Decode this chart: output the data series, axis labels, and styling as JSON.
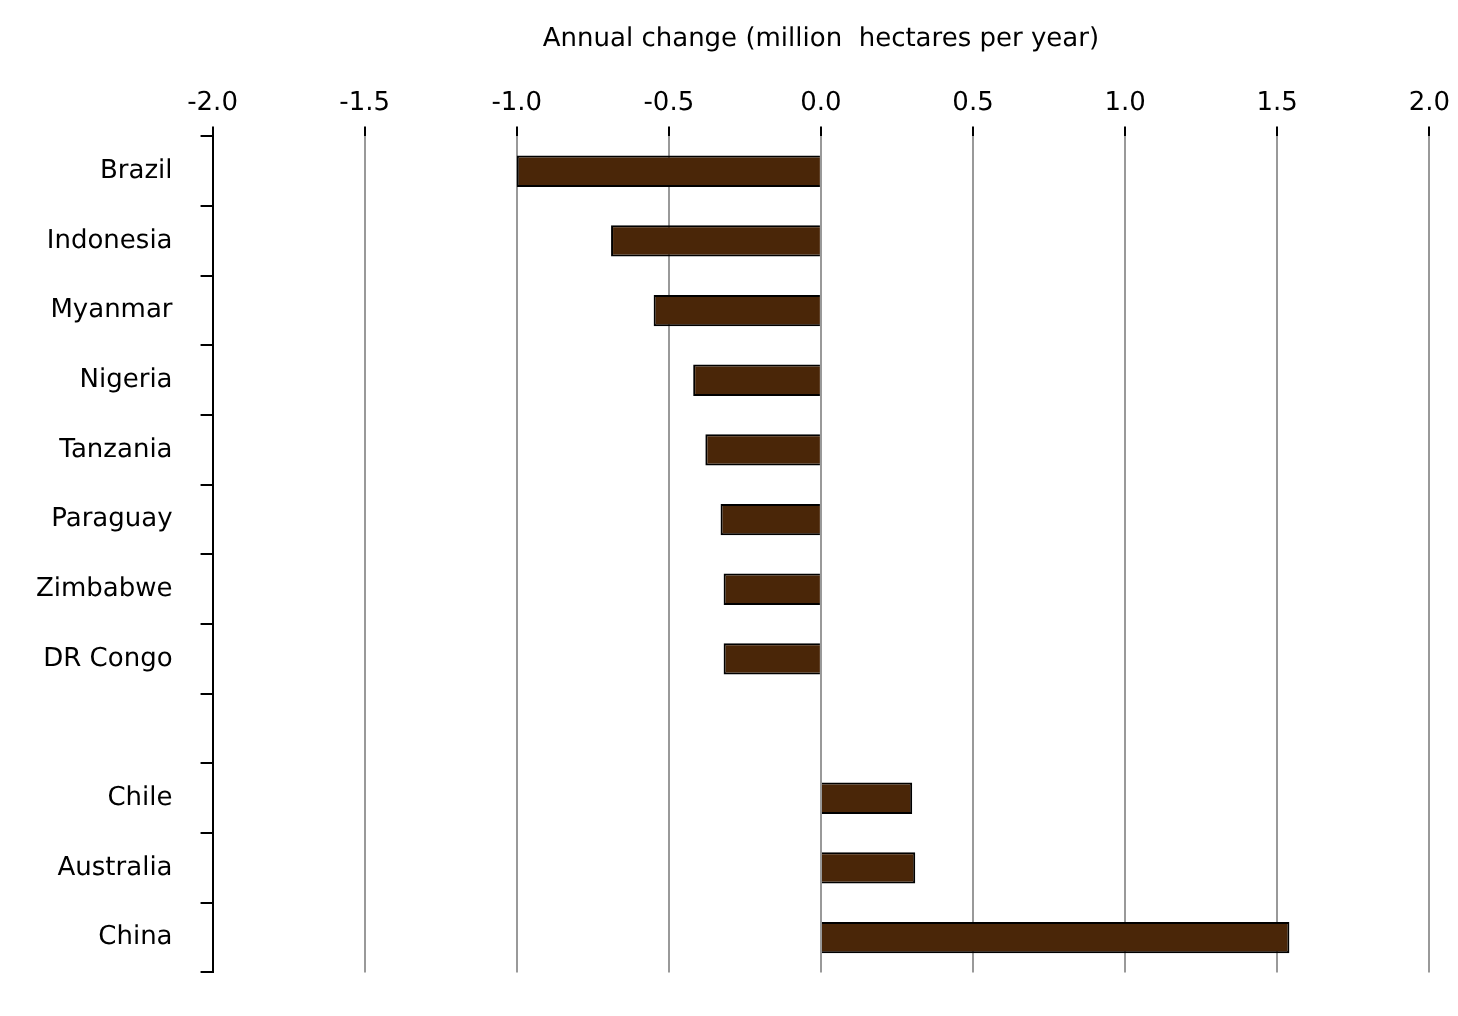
{
  "chart_data": {
    "type": "bar",
    "orientation": "horizontal",
    "xlabel": "Annual change (million  hectares per year)",
    "categories": [
      "Brazil",
      "Indonesia",
      "Myanmar",
      "Nigeria",
      "Tanzania",
      "Paraguay",
      "Zimbabwe",
      "DR Congo",
      null,
      "Chile",
      "Australia",
      "China"
    ],
    "values": [
      -1.0,
      -0.69,
      -0.55,
      -0.42,
      -0.38,
      -0.33,
      -0.32,
      -0.32,
      null,
      0.3,
      0.31,
      1.54
    ],
    "color": "#4a2608",
    "xlim": [
      -2,
      2
    ],
    "xticks": [
      {
        "value": -2,
        "label": "-2.0"
      },
      {
        "value": -1.5,
        "label": "-1.5"
      },
      {
        "value": -1,
        "label": "-1.0"
      },
      {
        "value": -0.5,
        "label": "-0.5"
      },
      {
        "value": 0,
        "label": "0.0"
      },
      {
        "value": 0.5,
        "label": "0.5"
      },
      {
        "value": 1,
        "label": "1.0"
      },
      {
        "value": 1.5,
        "label": "1.5"
      },
      {
        "value": 2,
        "label": "2.0"
      }
    ],
    "grid": "x",
    "legend": false
  }
}
